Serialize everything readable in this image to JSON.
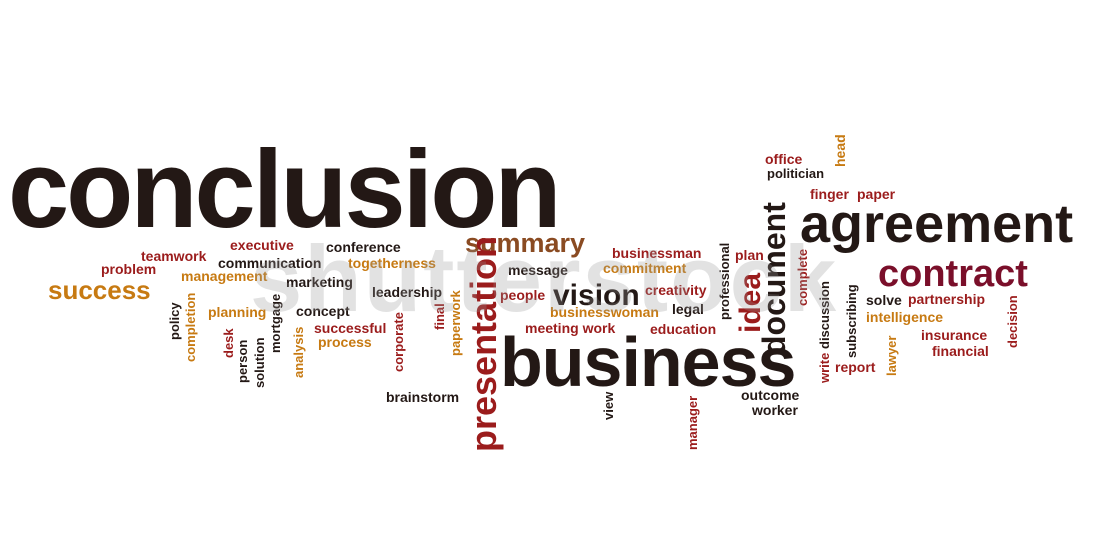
{
  "words": {
    "conclusion": "conclusion",
    "agreement": "agreement",
    "contract": "contract",
    "business": "business",
    "presentation": "presentation",
    "summary": "summary",
    "success": "success",
    "vision": "vision",
    "document": "document",
    "idea": "idea",
    "office": "office",
    "politician": "politician",
    "head": "head",
    "finger": "finger",
    "paper": "paper",
    "teamwork": "teamwork",
    "executive": "executive",
    "conference": "conference",
    "problem": "problem",
    "communication": "communication",
    "togetherness": "togetherness",
    "management": "management",
    "marketing": "marketing",
    "businessman": "businessman",
    "plan": "plan",
    "commitment": "commitment",
    "message": "message",
    "leadership": "leadership",
    "creativity": "creativity",
    "people": "people",
    "businesswoman": "businesswoman",
    "legal": "legal",
    "meeting_work": "meeting work",
    "education": "education",
    "planning": "planning",
    "concept": "concept",
    "successful": "successful",
    "process": "process",
    "policy": "policy",
    "completion": "completion",
    "desk": "desk",
    "person": "person",
    "solution": "solution",
    "mortgage": "mortgage",
    "analysis": "analysis",
    "corporate": "corporate",
    "final": "final",
    "paperwork": "paperwork",
    "brainstorm": "brainstorm",
    "view": "view",
    "manager": "manager",
    "professional": "professional",
    "outcome": "outcome",
    "worker": "worker",
    "complete": "complete",
    "write": "write",
    "discussion": "discussion",
    "subscribing": "subscribing",
    "solve": "solve",
    "partnership": "partnership",
    "intelligence": "intelligence",
    "lawyer": "lawyer",
    "report": "report",
    "insurance": "insurance",
    "financial": "financial",
    "decision": "decision"
  },
  "watermark": "shutterstock",
  "colors": {
    "dark": "#231815",
    "red": "#9b1c1c",
    "crimson": "#7a0f2a",
    "orange": "#c77a12",
    "brown": "#8a4b22"
  }
}
